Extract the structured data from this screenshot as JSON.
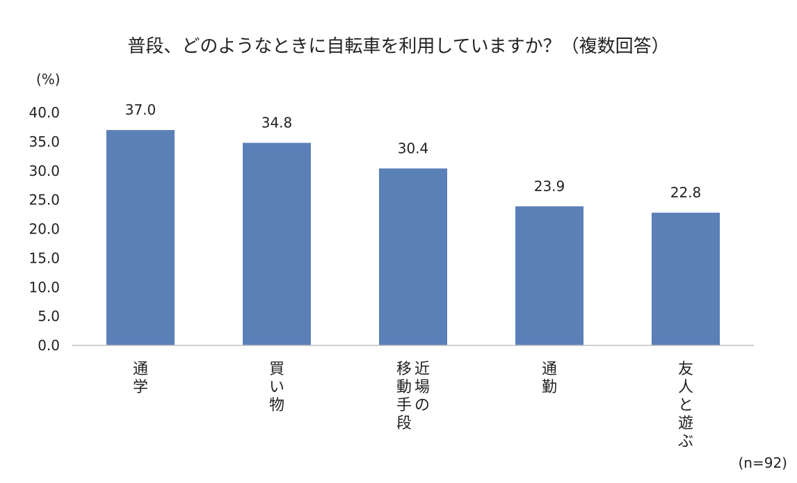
{
  "chart_data": {
    "type": "bar",
    "title": "普段、どのようなときに自転車を利用していますか？（複数回答）",
    "ylabel": "(%)",
    "categories": [
      "通学",
      "買い物",
      "近場の移動手段",
      "通勤",
      "友人と遊ぶ"
    ],
    "category_lines": [
      [
        "通学"
      ],
      [
        "買い物"
      ],
      [
        "近場の",
        "移動手段"
      ],
      [
        "通勤"
      ],
      [
        "友人と遊ぶ"
      ]
    ],
    "values": [
      37.0,
      34.8,
      30.4,
      23.9,
      22.8
    ],
    "data_labels": [
      "37.0",
      "34.8",
      "30.4",
      "23.9",
      "22.8"
    ],
    "ylim": [
      0,
      40
    ],
    "yticks": [
      "0.0",
      "5.0",
      "10.0",
      "15.0",
      "20.0",
      "25.0",
      "30.0",
      "35.0",
      "40.0"
    ],
    "grid": false,
    "legend": "none",
    "bar_color": "#5b80b8",
    "note": "(n=92)"
  }
}
